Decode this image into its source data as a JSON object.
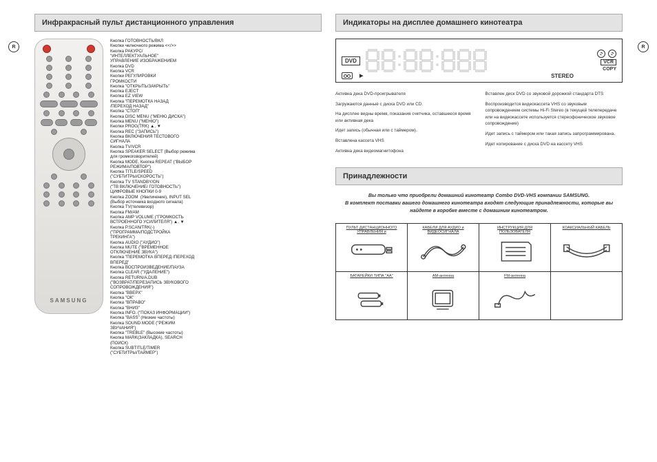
{
  "page_left": {
    "marker": "R",
    "title": "Инфракрасный пульт дистанционного управления",
    "remote_brand": "SAMSUNG",
    "buttons": [
      "Кнопка ГОТОВНОСТЬ/ВКЛ",
      "Кнопки челночного режима <</>>",
      "Кнопка РАКУРС/\n\"ИНТЕЛЛЕКТУАЛЬНОЕ\"\nУПРАВЛЕНИЕ ИЗОБРАЖЕНИЕМ",
      "Кнопка DVD",
      "Кнопка VCR",
      "Кнопки РЕГУЛИРОВКИ\nГРОМКОСТИ",
      "Кнопка \"ОТКРЫТЬ/ЗАКРЫТЬ\"",
      "Кнопка EJECT",
      "Кнопка EZ VIEW",
      "Кнопка \"ПЕРЕМОТКА НАЗАД\n/ПЕРЕХОД НАЗАД\"",
      "Кнопка \"СТОП\"",
      "Кнопка DISC MENU (\"МЕНЮ ДИСКА\")",
      "Кнопка MENU (\"МЕНЮ\")",
      "Кнопки PROG(TRK) ▲, ▼",
      "Кнопка REC (\"ЗАПИСЬ\")",
      "Кнопка ВКЛЮЧЕНИЯ ТЕСТОВОГО\nСИГНАЛА",
      "Кнопка TV/VCR",
      "Кнопка SPEAKER SELECT (Выбор режима\nдля громкоговорителей)",
      "Кнопка MODE, Кнопка REPEAT (\"ВЫБОР\nРЕЖИМА/ПОВТОР\")",
      "Кнопка TITLE/SPEED\n(\"СУБТИТРЫ/СКОРОСТЬ\")",
      "Кнопка TV STANDBY/ON\n(\"ТВ ВКЛЮЧЕНИЕ/ ГОТОВНОСТЬ\")",
      "ЦИФРОВЫЕ КНОПКИ 0-9",
      "Кнопка ZOOM  (Увеличение), INPUT SEL\n(Выбор источника входного сигнала)",
      "Кнопка TV(телевизор)",
      "Кнопка FM/AM",
      "Кнопка AMP VOLUME (\"ГРОМКОСТЬ\nВСТРОЕННОГО УСИЛИТЕЛЯ\") ▲, ▼",
      "Кнопка P.SCAN/TRK(-)\n(\"ПРОГРАММА/ПОДСТРОЙКА\nТРЕКИНГА\")",
      "Кнопка AUDIO (\"АУДИО\")",
      "Кнопка MUTE (\"ВРЕМЕННОЕ\nОТКЛЮЧЕНИЕ ЗВУКА\")",
      "Кнопка \"ПЕРЕМОТКА ВПЕРЕД /ПЕРЕХОД\nВПЕРЕД\"",
      "Кнопка ВОСПРОИЗВЕДЕНИЕ/ПАУЗА",
      "Кнопка CLEAR (\"УДАЛЕНИЕ\")",
      "Кнопка RETURN/A.DUB\n(\"ВОЗВРАТ/ПЕРЕЗАПИСЬ ЗВУКОВОГО\nСОПРОВОЖДЕНИЯ\")",
      "Кнопка \"ВВЕРХ\"",
      "Кнопка \"ОК\"",
      "Кнопка \"ВПРАВО\"",
      "Кнопка \"ВНИЗ\"",
      "Кнопка INFO. (\"ПОКАЗ ИНФОРМАЦИИ\")",
      "Кнопка \"BASS\" (Низкие частоты)",
      "Кнопка SOUND MODE (\"РЕЖИМ\nЗВУЧАНИЯ\")",
      "Кнопка \"TREBLE\" (Высокие частоты)",
      "Кнопка MARK(ЗАКЛАДКА), SEARCH\n(ПОИСК)",
      "Кнопка SUBTITLE/TIMER\n(\"СУБТИТРЫ/ТАЙМЕР\")"
    ]
  },
  "page_right": {
    "marker": "R",
    "section1_title": "Индикаторы на дисплее домашнего кинотеатра",
    "display": {
      "dvd_label": "DVD",
      "vcr_label": "VCR",
      "copy_label": "COPY",
      "stereo_label": "STEREO",
      "arrow_label": "▶",
      "digit_count": 7
    },
    "indicators_left": [
      "Активна дека DVD-проигрывателя",
      "Загружаются данные с диска DVD или CD.",
      "На дисплее видны время, показания счетчика, оставшееся время или активная дека",
      "Идет запись (обычная или с таймером).",
      "Вставлена кассета VHS",
      "Активна дека видеомагнитофона"
    ],
    "indicators_right": [
      "Вставлен диск DVD со звуковой дорожкой стандарта DTS",
      "Воспроизводится видеокассета VHS со звуковым сопровождением системы Hi-Fi Stereo (в текущей телепередаче или на видеокассете используется стереофоническое звуковое сопровождение)",
      "Идет запись с таймером или такая запись запрограммирована.",
      "Идет копирование с диска DVD на кассету VHS"
    ],
    "section2_title": "Принадлежности",
    "accessories_intro_1": "Вы только что приобрели домашний кинотеатр Combo DVD-VHS компании SAMSUNG.",
    "accessories_intro_2": "В комплект поставки вашего домашнего кинотеатра входят следующие принадлежности, которые вы найдете в коробке вместе с домашним кинотеатром.",
    "accessories": [
      {
        "label": "ПУЛЬТ ДИСТАНЦИОННОГО УПРАВЛЕНИЯ и",
        "icon": "remote"
      },
      {
        "label": "КАБЕЛИ ДЛЯ АУДИО и ВИДЕОСИГНАЛА",
        "icon": "av-cable"
      },
      {
        "label": "ИНСТРУКЦИЯ ДЛЯ ПОЛЬЗОВАТЕЛЯ",
        "icon": "manual"
      },
      {
        "label": "КОАКСИАЛЬНЫЙ КАБЕЛЬ",
        "icon": "coax"
      },
      {
        "label": "БАТАРЕЙКИ ТИПА \"АА\"",
        "icon": "batteries"
      },
      {
        "label": "АМ-антенна",
        "icon": "am-antenna"
      },
      {
        "label": "FM-антенна",
        "icon": "fm-antenna"
      },
      {
        "label": "",
        "icon": ""
      }
    ]
  },
  "styling": {
    "page_bg": "#ffffff",
    "header_bg": "#e3e3e3",
    "header_border": "#aaaaaa",
    "text_color": "#333333",
    "segment_color": "#dcdcdc",
    "panel_border": "#333333",
    "remote_gradient_top": "#f2f1ef",
    "remote_gradient_bottom": "#dedcd8",
    "button_gray": "#9a9a9a",
    "button_red": "#ce3a2f",
    "font_title_pt": 11,
    "font_body_pt": 7,
    "font_list_pt": 6.2
  }
}
